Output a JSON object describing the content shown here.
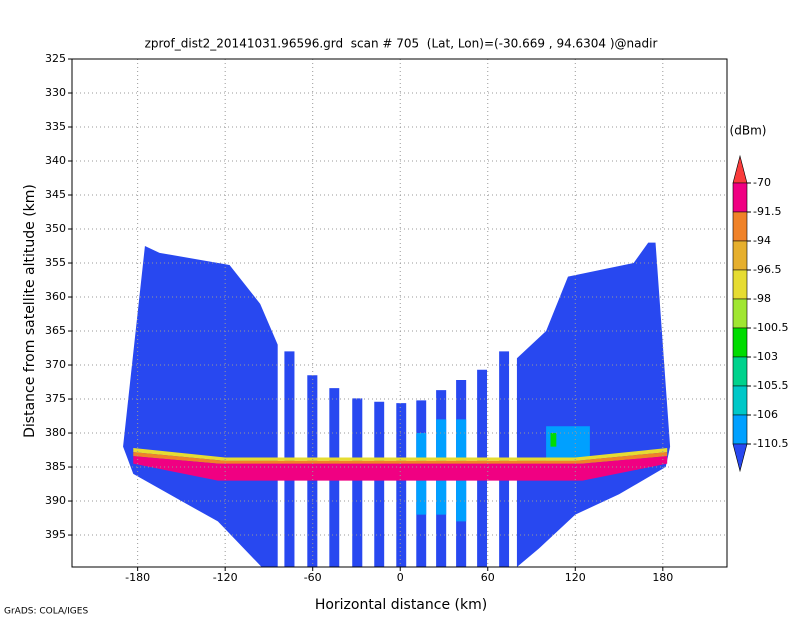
{
  "chart_data": {
    "type": "field",
    "title": "zprof_dist2_20141031.96596.grd  scan # 705  (Lat, Lon)=(-30.669 , 94.6304 )@nadir",
    "xlabel": "Horizontal distance (km)",
    "ylabel": "Distance from satellite altitude (km)",
    "credit": "GrADS: COLA/IGES",
    "xlim": [
      -225,
      224
    ],
    "ylim": [
      325,
      399.7
    ],
    "y_inverted": true,
    "grid": true,
    "xticks": [
      -180,
      -120,
      -60,
      0,
      60,
      120,
      180
    ],
    "yticks": [
      325,
      330,
      335,
      340,
      345,
      350,
      355,
      360,
      365,
      370,
      375,
      380,
      385,
      390,
      395
    ],
    "colorbar": {
      "unit": "(dBm)",
      "levels": [
        -70,
        -91.5,
        -94,
        -96.5,
        -98,
        -100.5,
        -103,
        -105.5,
        -106,
        -110.5
      ],
      "colors": [
        "#fa3c3c",
        "#f00082",
        "#f08228",
        "#e6af2d",
        "#e6dc32",
        "#a0e632",
        "#00dc00",
        "#00d28c",
        "#00c8c8",
        "#00a0ff",
        "#2848f0"
      ]
    },
    "field": [
      {
        "color": "#2848f0",
        "x": [
          -190,
          -175,
          -165,
          -117,
          -96,
          -84,
          -84,
          -95,
          -125,
          -150,
          -183
        ],
        "y": [
          382,
          352.5,
          353.5,
          355.3,
          361,
          367,
          399.7,
          399.7,
          393,
          390,
          386
        ]
      },
      {
        "color": "#2848f0",
        "x": [
          182,
          185,
          175,
          170,
          160,
          115,
          100,
          80,
          80,
          95,
          120,
          150
        ],
        "y": [
          385,
          382,
          352,
          352,
          355,
          357,
          365,
          369,
          399.7,
          397,
          392,
          389
        ]
      },
      {
        "color": "#2848f0",
        "x": [
          -79.4,
          -72.5,
          -72.5,
          -79.4
        ],
        "y": [
          368,
          368,
          399.7,
          399.7
        ]
      },
      {
        "color": "#2848f0",
        "x": [
          -63.7,
          -56.8,
          -56.8,
          -63.7
        ],
        "y": [
          371.5,
          371.5,
          399.7,
          399.7
        ]
      },
      {
        "color": "#2848f0",
        "x": [
          -48.6,
          -41.8,
          -41.8,
          -48.6
        ],
        "y": [
          373.4,
          373.4,
          399.7,
          399.7
        ]
      },
      {
        "color": "#2848f0",
        "x": [
          -32.9,
          -26,
          -26,
          -32.9
        ],
        "y": [
          374.9,
          374.9,
          399.7,
          399.7
        ]
      },
      {
        "color": "#2848f0",
        "x": [
          -17.8,
          -11,
          -11,
          -17.8
        ],
        "y": [
          375.4,
          375.4,
          399.7,
          399.7
        ]
      },
      {
        "color": "#2848f0",
        "x": [
          -2.7,
          4.1,
          4.1,
          -2.7
        ],
        "y": [
          375.6,
          375.6,
          399.7,
          399.7
        ]
      },
      {
        "color": "#2848f0",
        "x": [
          11,
          17.8,
          17.8,
          11
        ],
        "y": [
          375.2,
          375.2,
          399.7,
          399.7
        ]
      },
      {
        "color": "#2848f0",
        "x": [
          24.6,
          31.5,
          31.5,
          24.6
        ],
        "y": [
          373.7,
          373.7,
          399.7,
          399.7
        ]
      },
      {
        "color": "#2848f0",
        "x": [
          38.3,
          45.2,
          45.2,
          38.3
        ],
        "y": [
          372.2,
          372.2,
          399.7,
          399.7
        ]
      },
      {
        "color": "#2848f0",
        "x": [
          52.7,
          59.5,
          59.5,
          52.7
        ],
        "y": [
          370.7,
          370.7,
          399.7,
          399.7
        ]
      },
      {
        "color": "#2848f0",
        "x": [
          67.8,
          74.6,
          74.6,
          67.8
        ],
        "y": [
          368,
          368,
          399.7,
          399.7
        ]
      },
      {
        "color": "#00a0ff",
        "x": [
          11,
          17.8,
          17.8,
          11
        ],
        "y": [
          380,
          380,
          392,
          392
        ]
      },
      {
        "color": "#00a0ff",
        "x": [
          24.6,
          31.5,
          31.5,
          24.6
        ],
        "y": [
          378,
          378,
          392,
          392
        ]
      },
      {
        "color": "#00a0ff",
        "x": [
          38.3,
          45.2,
          45.2,
          38.3
        ],
        "y": [
          378,
          378,
          393,
          393
        ]
      },
      {
        "color": "#00a0ff",
        "x": [
          100,
          130,
          130,
          100
        ],
        "y": [
          379,
          379,
          386,
          386
        ]
      },
      {
        "color": "#00dc00",
        "x": [
          103,
          107,
          107,
          103
        ],
        "y": [
          380,
          380,
          382,
          382
        ]
      },
      {
        "color": "#e6dc32",
        "x": [
          -183,
          -120,
          120,
          183,
          183,
          120,
          -120,
          -183
        ],
        "y": [
          382.2,
          383.6,
          383.6,
          382.2,
          382.8,
          384.1,
          384.1,
          382.8
        ]
      },
      {
        "color": "#f08228",
        "x": [
          -183,
          -120,
          120,
          183,
          183,
          120,
          -120,
          -183
        ],
        "y": [
          382.8,
          384.1,
          384.1,
          382.8,
          383.4,
          384.6,
          384.6,
          383.4
        ]
      },
      {
        "color": "#f00082",
        "x": [
          -183,
          -125,
          125,
          183,
          183,
          125,
          -125,
          -183
        ],
        "y": [
          383.4,
          384.5,
          384.5,
          383.4,
          384.5,
          387,
          387,
          384.5
        ]
      }
    ]
  }
}
